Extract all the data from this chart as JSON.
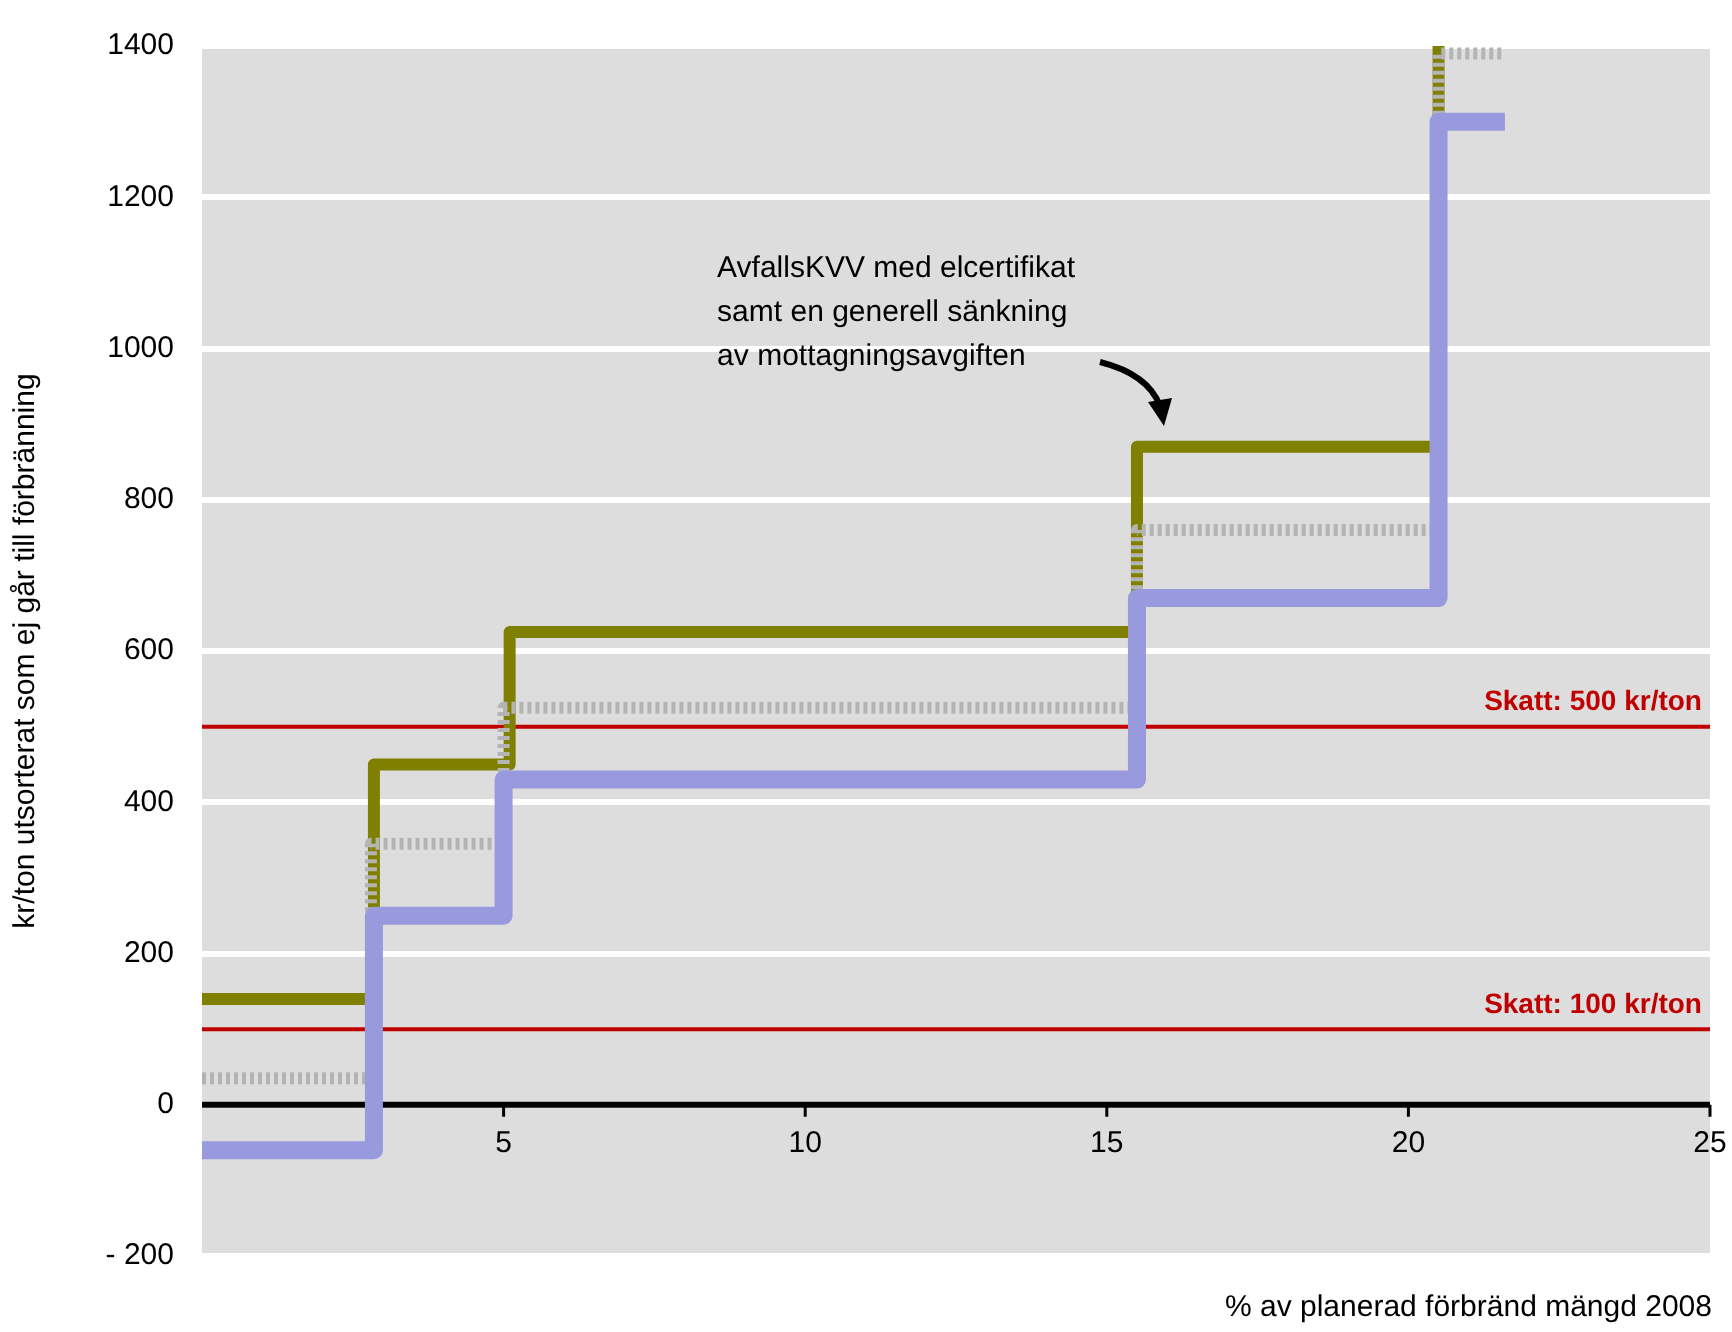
{
  "chart_data": {
    "type": "step",
    "ylabel": "kr/ton utsorterat som ej går till förbränning",
    "xlabel": "% av planerad förbränd mängd 2008",
    "xlim": [
      0,
      25
    ],
    "xticks": [
      5,
      10,
      15,
      20,
      25
    ],
    "ylim": [
      -200,
      1400
    ],
    "yticks": [
      {
        "value": -200,
        "label": "- 200"
      },
      0,
      200,
      400,
      600,
      800,
      1000,
      1200,
      1400
    ],
    "grid": "y",
    "legend": false,
    "marker": "none",
    "series": [
      {
        "color": "#9999dd",
        "line_style": "solid",
        "x": [
          0,
          2.85,
          5,
          15.5,
          20.5,
          21.6
        ],
        "values": [
          -60,
          250,
          430,
          670,
          1300,
          1300
        ]
      },
      {
        "color": "#b4b4b4",
        "line_style": "dotted",
        "x": [
          0,
          2.8,
          5,
          15.5,
          20.5,
          21.6
        ],
        "values": [
          35,
          345,
          525,
          760,
          1390,
          1390
        ]
      },
      {
        "color": "#808000",
        "line_style": "solid",
        "x": [
          0,
          2.85,
          5.1,
          15.5,
          20.5
        ],
        "values": [
          140,
          450,
          625,
          870,
          1400
        ]
      }
    ],
    "ref_lines": [
      {
        "axis": "y",
        "value": 500,
        "label": "Skatt: 500 kr/ton",
        "color": "#c00000"
      },
      {
        "axis": "y",
        "value": 100,
        "label": "Skatt: 100 kr/ton",
        "color": "#c00000"
      }
    ],
    "annotations": [
      "AvfallsKVV med elcertifikat\nsamt en generell sänkning\nav mottagningsavgiften"
    ]
  }
}
